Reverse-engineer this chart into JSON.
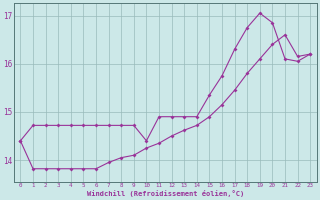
{
  "bg_color": "#cce8e8",
  "line_color": "#993399",
  "grid_color": "#99bbbb",
  "xlabel": "Windchill (Refroidissement éolien,°C)",
  "xlim": [
    -0.5,
    23.5
  ],
  "ylim": [
    13.55,
    17.25
  ],
  "yticks": [
    14,
    15,
    16,
    17
  ],
  "xticks": [
    0,
    1,
    2,
    3,
    4,
    5,
    6,
    7,
    8,
    9,
    10,
    11,
    12,
    13,
    14,
    15,
    16,
    17,
    18,
    19,
    20,
    21,
    22,
    23
  ],
  "series1_x": [
    0,
    1,
    2,
    3,
    4,
    5,
    6,
    7,
    8,
    9,
    10,
    11,
    12,
    13,
    14,
    15,
    16,
    17,
    18,
    19,
    20,
    21,
    22,
    23
  ],
  "series1_y": [
    14.4,
    14.72,
    14.72,
    14.72,
    14.72,
    14.72,
    14.72,
    14.72,
    14.72,
    14.72,
    14.4,
    14.9,
    14.9,
    14.9,
    14.9,
    15.35,
    15.75,
    16.3,
    16.75,
    17.05,
    16.85,
    16.1,
    16.05,
    16.2
  ],
  "series2_x": [
    0,
    1,
    2,
    3,
    4,
    5,
    6,
    7,
    8,
    9,
    10,
    11,
    12,
    13,
    14,
    15,
    16,
    17,
    18,
    19,
    20,
    21,
    22,
    23
  ],
  "series2_y": [
    14.4,
    13.82,
    13.82,
    13.82,
    13.82,
    13.82,
    13.82,
    13.95,
    14.05,
    14.1,
    14.25,
    14.35,
    14.5,
    14.62,
    14.72,
    14.9,
    15.15,
    15.45,
    15.8,
    16.1,
    16.4,
    16.6,
    16.15,
    16.2
  ]
}
